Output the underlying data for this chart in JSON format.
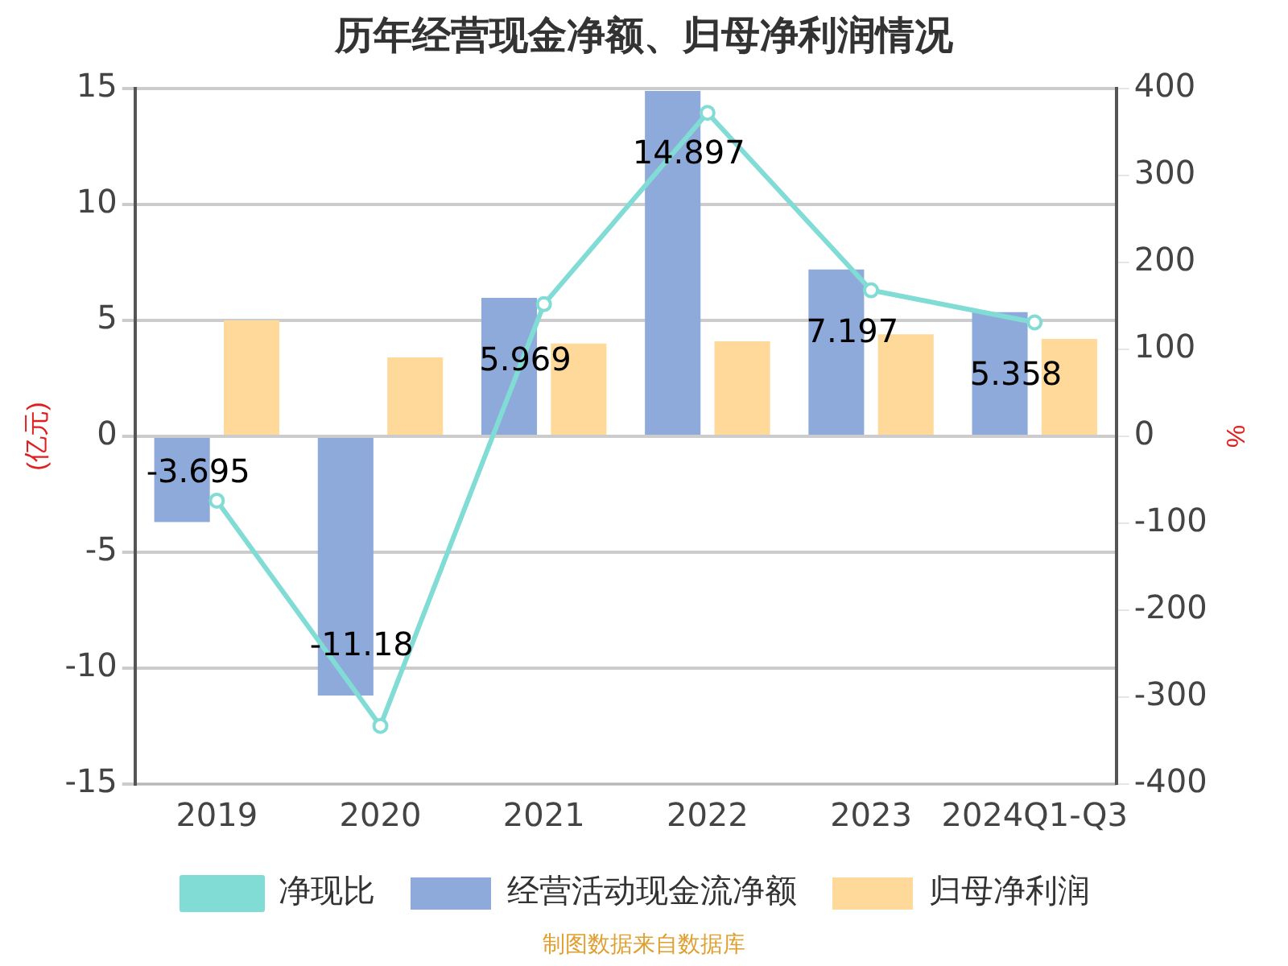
{
  "chart_data": {
    "type": "bar",
    "title": "历年经营现金净额、归母净利润情况",
    "ylabel": "(亿元)",
    "y2label": "%",
    "categories": [
      "2019",
      "2020",
      "2021",
      "2022",
      "2023",
      "2024Q1-Q3"
    ],
    "series": [
      {
        "name": "经营活动现金流净额",
        "color": "#8eaadb",
        "values": [
          -3.695,
          -11.18,
          5.969,
          14.897,
          7.197,
          5.358
        ],
        "value_labels": [
          "-3.695",
          "-11.18",
          "5.969",
          "14.897",
          "7.197",
          "5.358"
        ]
      },
      {
        "name": "归母净利润",
        "color": "#ffd99a",
        "values": [
          5.0,
          3.4,
          4.0,
          4.1,
          4.4,
          4.2
        ]
      },
      {
        "name": "净现比",
        "type": "line",
        "axis": "y2",
        "color": "#80dcd4",
        "values": [
          -74,
          -333,
          152,
          372,
          168,
          131
        ]
      }
    ],
    "ylim": [
      -15,
      15
    ],
    "yticks": [
      -15,
      -10,
      -5,
      0,
      5,
      10,
      15
    ],
    "y2lim": [
      -400,
      400
    ],
    "y2ticks": [
      -400,
      -300,
      -200,
      -100,
      0,
      100,
      200,
      300,
      400
    ],
    "grid": "y",
    "legend": "bottom",
    "marker": "circle",
    "annotations": [
      "制图数据来自数据库"
    ]
  }
}
